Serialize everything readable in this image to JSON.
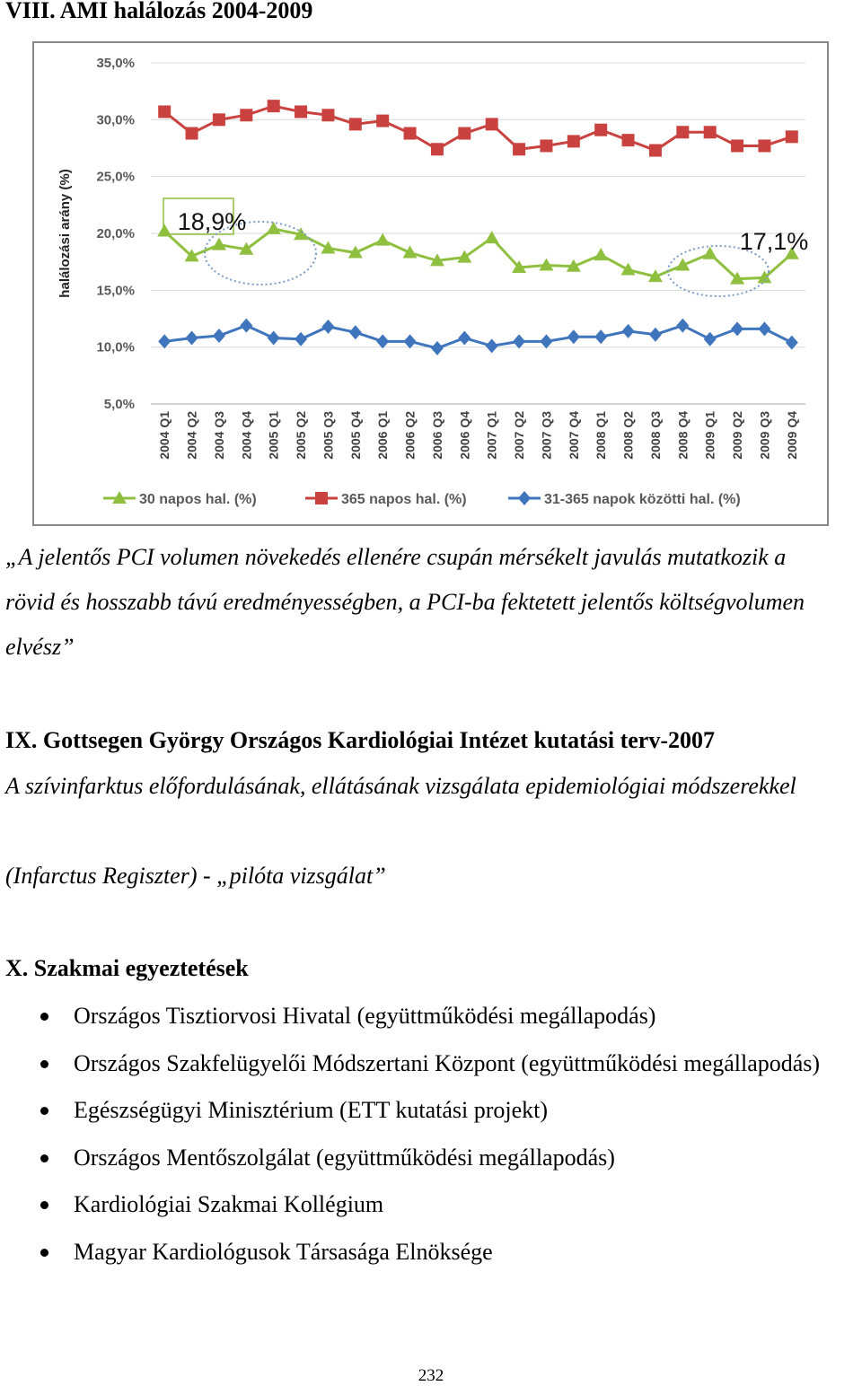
{
  "heading": "VIII. AMI halálozás 2004-2009",
  "chart_data": {
    "type": "line",
    "y_label": "halálozási arány (%)",
    "categories": [
      "2004 Q1",
      "2004 Q2",
      "2004 Q3",
      "2004 Q4",
      "2005 Q1",
      "2005 Q2",
      "2005 Q3",
      "2005 Q4",
      "2006 Q1",
      "2006 Q2",
      "2006 Q3",
      "2006 Q4",
      "2007 Q1",
      "2007 Q2",
      "2007 Q3",
      "2007 Q4",
      "2008 Q1",
      "2008 Q2",
      "2008 Q3",
      "2008 Q4",
      "2009 Q1",
      "2009 Q2",
      "2009 Q3",
      "2009 Q4"
    ],
    "series": [
      {
        "name": "30 napos hal. (%)",
        "color": "#8fbf3f",
        "marker": "triangle",
        "values": [
          20.2,
          18.0,
          19.0,
          18.6,
          20.4,
          19.9,
          18.7,
          18.3,
          19.4,
          18.3,
          17.6,
          17.9,
          19.6,
          17.0,
          17.2,
          17.1,
          18.1,
          16.8,
          16.2,
          17.2,
          18.2,
          16.0,
          16.1,
          18.2
        ]
      },
      {
        "name": "365 napos hal. (%)",
        "color": "#c9423f",
        "marker": "square",
        "values": [
          30.7,
          28.8,
          30.0,
          30.4,
          31.2,
          30.7,
          30.4,
          29.6,
          29.9,
          28.8,
          27.4,
          28.8,
          29.6,
          27.4,
          27.7,
          28.1,
          29.1,
          28.2,
          27.3,
          28.9,
          28.9,
          27.7,
          27.7,
          28.5
        ]
      },
      {
        "name": "31-365 napok közötti hal. (%)",
        "color": "#3f75bd",
        "marker": "diamond",
        "values": [
          10.5,
          10.8,
          11.0,
          11.9,
          10.8,
          10.7,
          11.8,
          11.3,
          10.5,
          10.5,
          9.9,
          10.8,
          10.1,
          10.5,
          10.5,
          10.9,
          10.9,
          11.4,
          11.1,
          11.9,
          10.7,
          11.6,
          11.6,
          10.4
        ]
      }
    ],
    "ylim": [
      5,
      35
    ],
    "yticks": [
      {
        "value": 5,
        "label": "5,0%"
      },
      {
        "value": 10,
        "label": "10,0%"
      },
      {
        "value": 15,
        "label": "15,0%"
      },
      {
        "value": 20,
        "label": "20,0%"
      },
      {
        "value": 25,
        "label": "25,0%"
      },
      {
        "value": 30,
        "label": "30,0%"
      },
      {
        "value": 35,
        "label": "35,0%"
      }
    ],
    "grid": true,
    "legend": "bottom",
    "annotations": [
      {
        "text": "18,9%"
      },
      {
        "text": "17,1%"
      }
    ]
  },
  "quote": "„A jelentős PCI volumen növekedés ellenére csupán mérsékelt javulás mutatkozik a rövid és hosszabb távú eredményességben, a PCI-ba fektetett jelentős költségvolumen elvész”",
  "section_ix": {
    "title": "IX. Gottsegen György Országos Kardiológiai Intézet kutatási terv-2007",
    "text": "A szívinfarktus előfordulásának, ellátásának vizsgálata epidemiológiai módszerekkel",
    "text2": "(Infarctus Regiszter) - „pilóta vizsgálat”"
  },
  "section_x": {
    "title": "X. Szakmai egyeztetések",
    "items": [
      "Országos Tisztiorvosi Hivatal (együttműködési megállapodás)",
      "Országos Szakfelügyelői Módszertani Központ (együttműködési megállapodás)",
      "Egészségügyi Minisztérium (ETT kutatási projekt)",
      "Országos Mentőszolgálat (együttműködési megállapodás)",
      "Kardiológiai Szakmai Kollégium",
      "Magyar Kardiológusok Társasága Elnöksége"
    ]
  },
  "page_number": "232"
}
